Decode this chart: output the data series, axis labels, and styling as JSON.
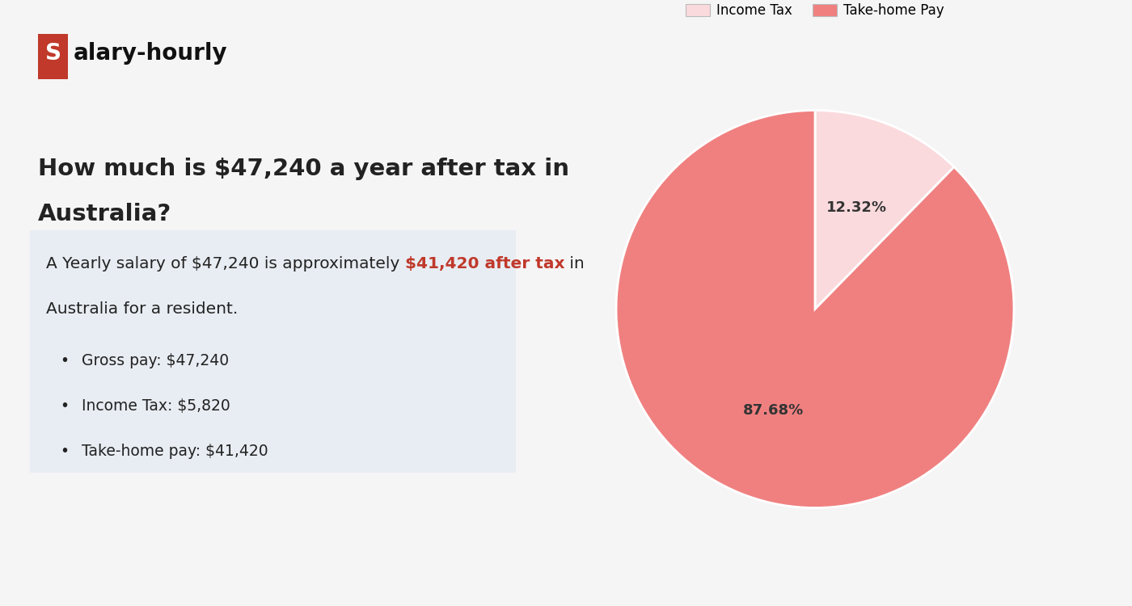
{
  "logo_text_s": "S",
  "logo_text_rest": "alary-hourly",
  "logo_bg_color": "#c0392b",
  "logo_text_color": "#ffffff",
  "logo_rest_color": "#111111",
  "background_color": "#f5f5f5",
  "info_box_color": "#e8edf3",
  "highlight_color": "#c0392b",
  "title_line1": "How much is $47,240 a year after tax in",
  "title_line2": "Australia?",
  "info_pre": "A Yearly salary of $47,240 is approximately ",
  "info_highlight": "$41,420 after tax",
  "info_post": " in",
  "info_line2": "Australia for a resident.",
  "bullet_items": [
    "Gross pay: $47,240",
    "Income Tax: $5,820",
    "Take-home pay: $41,420"
  ],
  "pie_values": [
    5820,
    41420
  ],
  "pie_labels": [
    "Income Tax",
    "Take-home Pay"
  ],
  "pie_colors": [
    "#fadadd",
    "#f08080"
  ],
  "pie_autopct_0": "12.32%",
  "pie_autopct_1": "87.68%",
  "title_color": "#222222",
  "body_color": "#222222",
  "title_fontsize": 21,
  "body_fontsize": 14.5,
  "bullet_fontsize": 13.5,
  "logo_fontsize": 20
}
